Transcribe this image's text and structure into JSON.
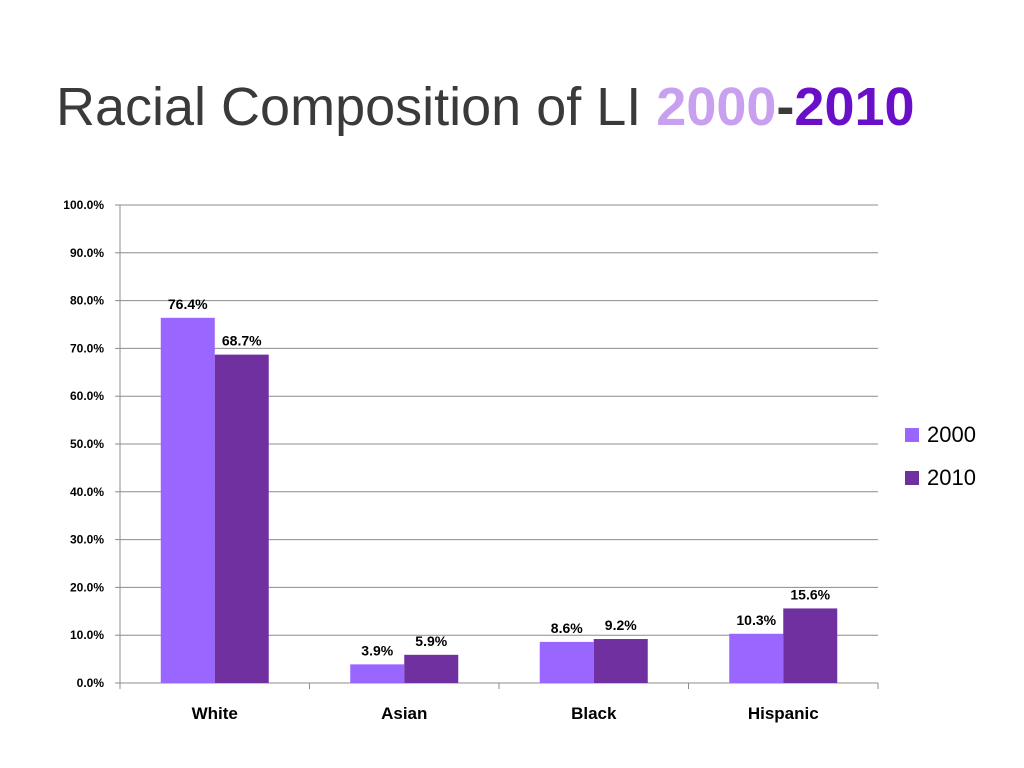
{
  "title": {
    "prefix": "Racial Composition of LI ",
    "year1": "2000",
    "dash": "-",
    "year2": "2010"
  },
  "colors": {
    "series_2000": "#9966ff",
    "series_2010": "#7030a0",
    "title_year1": "#c9a0f0",
    "title_year2": "#6a0fc8",
    "gridline": "#8c8c8c"
  },
  "chart_data": {
    "type": "bar",
    "categories": [
      "White",
      "Asian",
      "Black",
      "Hispanic"
    ],
    "series": [
      {
        "name": "2000",
        "values": [
          76.4,
          3.9,
          8.6,
          10.3
        ],
        "labels": [
          "76.4%",
          "3.9%",
          "8.6%",
          "10.3%"
        ]
      },
      {
        "name": "2010",
        "values": [
          68.7,
          5.9,
          9.2,
          15.6
        ],
        "labels": [
          "68.7%",
          "5.9%",
          "9.2%",
          "15.6%"
        ]
      }
    ],
    "ylim": [
      0,
      100
    ],
    "yticks": [
      "0.0%",
      "10.0%",
      "20.0%",
      "30.0%",
      "40.0%",
      "50.0%",
      "60.0%",
      "70.0%",
      "80.0%",
      "90.0%",
      "100.0%"
    ],
    "grid": true,
    "legend": "right"
  }
}
